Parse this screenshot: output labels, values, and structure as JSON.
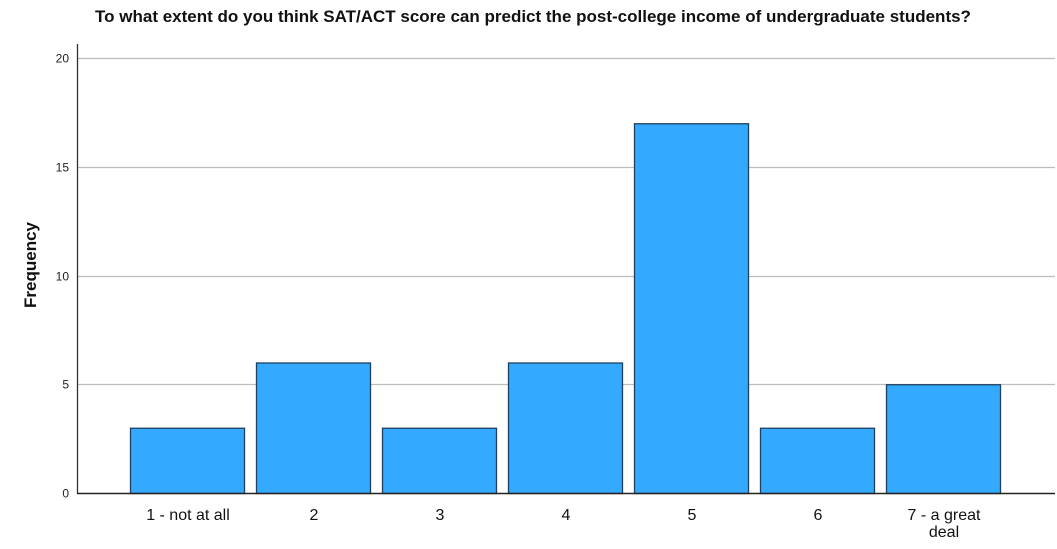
{
  "chart_data": {
    "type": "bar",
    "title": "To what extent do you think SAT/ACT score can predict the post-college income of undergraduate students?",
    "xlabel": "",
    "ylabel": "Frequency",
    "categories": [
      "1 - not at all",
      "2",
      "3",
      "4",
      "5",
      "6",
      "7 - a great deal"
    ],
    "values": [
      3,
      6,
      3,
      6,
      17,
      3,
      5
    ],
    "ylim": [
      0,
      20
    ],
    "yticks": [
      0,
      5,
      10,
      15,
      20
    ],
    "grid": true,
    "bar_color": "#33aaff",
    "bar_edge_color": "#1f3f5f",
    "grid_color": "#bdbdbd"
  }
}
